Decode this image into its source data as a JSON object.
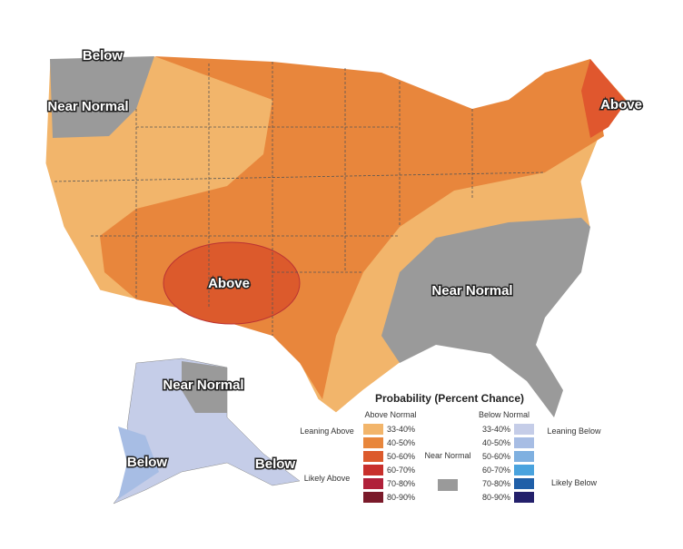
{
  "map": {
    "labels": [
      "Below",
      "Near Normal",
      "Above",
      "Above",
      "Near Normal",
      "Near Normal",
      "Below",
      "Below"
    ],
    "legend": {
      "title": "Probability (Percent Chance)",
      "above_heading": "Above Normal",
      "below_heading": "Below Normal",
      "near_normal": "Near Normal",
      "leaning_above": "Leaning Above",
      "likely_above": "Likely Above",
      "leaning_below": "Leaning Below",
      "likely_below": "Likely Below",
      "above": [
        {
          "range": "33-40%",
          "color": "#f2b56b"
        },
        {
          "range": "40-50%",
          "color": "#e8863c"
        },
        {
          "range": "50-60%",
          "color": "#dc5a2c"
        },
        {
          "range": "60-70%",
          "color": "#c8302c"
        },
        {
          "range": "70-80%",
          "color": "#b0203a"
        },
        {
          "range": "80-90%",
          "color": "#7a1a2a"
        }
      ],
      "below": [
        {
          "range": "33-40%",
          "color": "#c5cde8"
        },
        {
          "range": "40-50%",
          "color": "#a7bde4"
        },
        {
          "range": "50-60%",
          "color": "#7fb0e0"
        },
        {
          "range": "60-70%",
          "color": "#4aa3de"
        },
        {
          "range": "70-80%",
          "color": "#1f5fa8"
        },
        {
          "range": "80-90%",
          "color": "#23206b"
        }
      ]
    }
  }
}
